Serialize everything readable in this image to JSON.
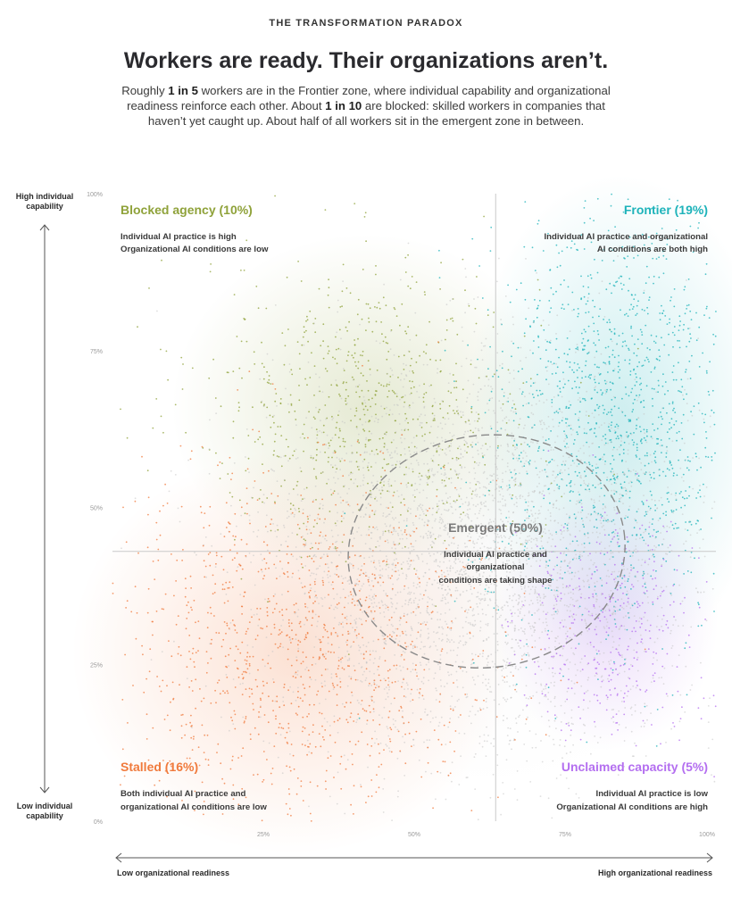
{
  "eyebrow": "THE TRANSFORMATION PARADOX",
  "headline": "Workers are ready. Their organizations aren’t.",
  "lede": {
    "p1": "Roughly ",
    "b1": "1 in 5",
    "p2": " workers are in the Frontier zone, where individual capability and organizational readiness reinforce each other. About ",
    "b2": "1 in 10",
    "p3": " are blocked: skilled workers in companies that haven’t yet caught up. About half of all workers sit in the emergent zone in between."
  },
  "axis": {
    "y_high": "High individual capability",
    "y_low": "Low individual capability",
    "x_low": "Low organizational readiness",
    "x_high": "High organizational readiness"
  },
  "chart_data": {
    "type": "scatter",
    "xlim": [
      0,
      100
    ],
    "ylim": [
      0,
      100
    ],
    "x_ticks": [
      "25%",
      "50%",
      "75%",
      "100%"
    ],
    "y_ticks": [
      "0%",
      "25%",
      "50%",
      "75%",
      "100%"
    ],
    "x_tick_values": [
      25,
      50,
      75,
      100
    ],
    "y_tick_values": [
      0,
      25,
      50,
      75,
      100
    ],
    "divider_x": 63.5,
    "divider_y": 43,
    "zones": [
      {
        "id": "blocked",
        "name": "Blocked agency (10%)",
        "share": 10,
        "line1": "Individual AI practice is high",
        "line2": "Organizational AI conditions are low",
        "color": "#8fa23a",
        "center": [
          42,
          66
        ],
        "spread": [
          14,
          12
        ],
        "weight": 10
      },
      {
        "id": "frontier",
        "name": "Frontier (19%)",
        "share": 19,
        "line1": "Individual AI practice and organizational",
        "line2": "AI conditions are both high",
        "color": "#1eb3ba",
        "center": [
          84,
          64
        ],
        "spread": [
          11,
          17
        ],
        "weight": 19
      },
      {
        "id": "emergent",
        "name": "Emergent (50%)",
        "share": 50,
        "line1": "Individual AI practice and",
        "line2": "organizational",
        "line3": "conditions are taking shape",
        "color": "#c4c4c4",
        "center": [
          61,
          42
        ],
        "spread": [
          18,
          16
        ],
        "weight": 50
      },
      {
        "id": "stalled",
        "name": "Stalled (16%)",
        "share": 16,
        "line1": "Both individual AI practice and",
        "line2": "organizational AI conditions are low",
        "color": "#f07a3c",
        "center": [
          30,
          27
        ],
        "spread": [
          16,
          14
        ],
        "weight": 16
      },
      {
        "id": "unclaimed",
        "name": "Unclaimed capacity (5%)",
        "share": 5,
        "line1": "Individual AI practice is low",
        "line2": "Organizational AI conditions are high",
        "color": "#b46ff0",
        "center": [
          82,
          32
        ],
        "spread": [
          8,
          9
        ],
        "weight": 5
      }
    ],
    "emergent_boundary": {
      "cx": 62,
      "cy": 43,
      "rx": 23,
      "ry": 18.5
    }
  }
}
